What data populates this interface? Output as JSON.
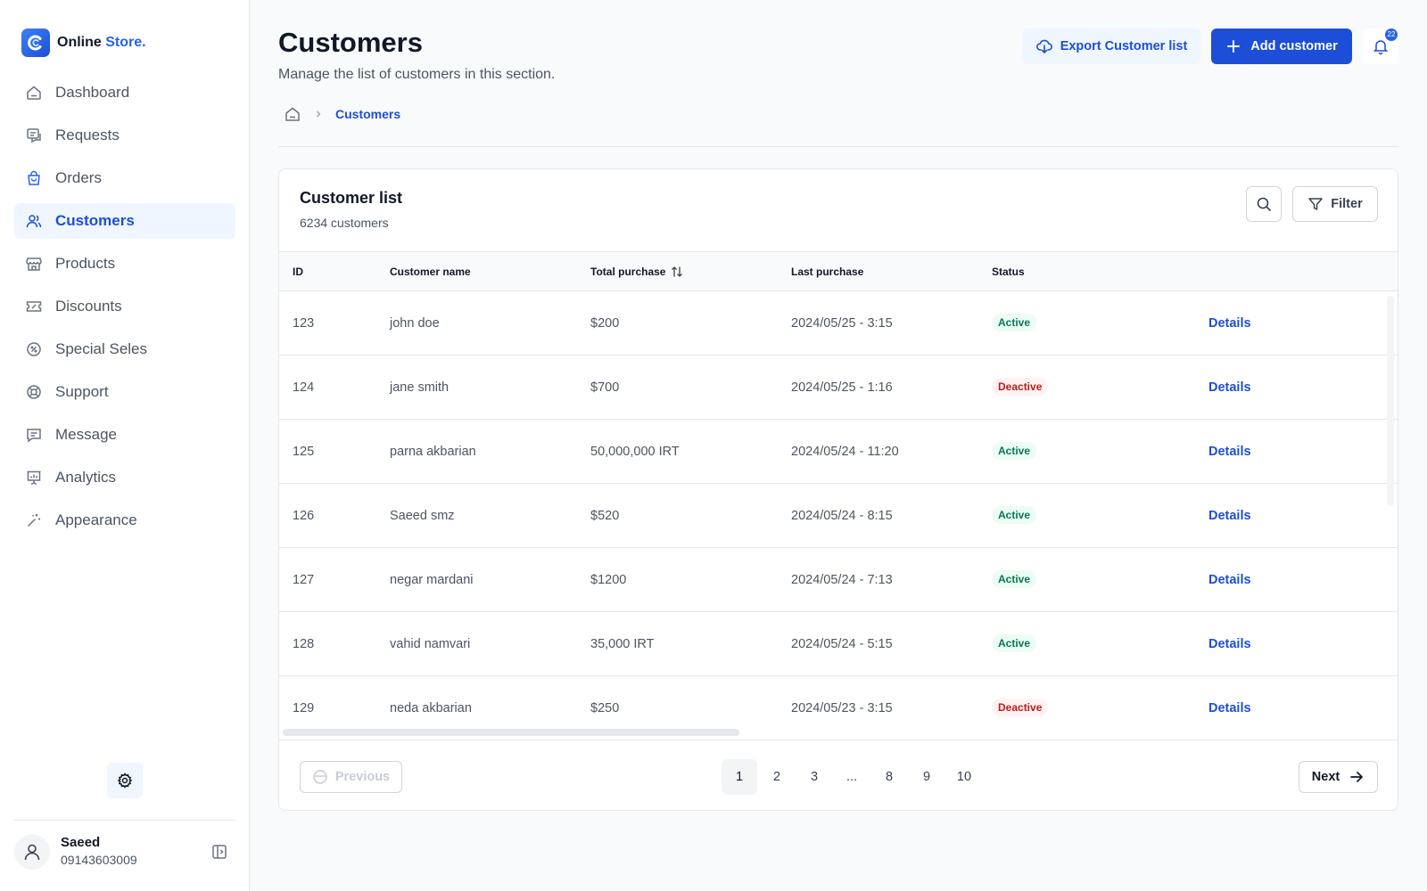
{
  "brand": {
    "name": "Online",
    "accent": "Store."
  },
  "sidebar": {
    "items": [
      {
        "label": "Dashboard",
        "icon": "dashboard-icon"
      },
      {
        "label": "Requests",
        "icon": "requests-icon"
      },
      {
        "label": "Orders",
        "icon": "orders-bag-icon"
      },
      {
        "label": "Customers",
        "icon": "users-icon",
        "active": true
      },
      {
        "label": "Products",
        "icon": "store-icon"
      },
      {
        "label": "Discounts",
        "icon": "ticket-icon"
      },
      {
        "label": "Special Seles",
        "icon": "badge-percent-icon"
      },
      {
        "label": "Support",
        "icon": "lifebuoy-icon"
      },
      {
        "label": "Message",
        "icon": "message-icon"
      },
      {
        "label": "Analytics",
        "icon": "presentation-chart-icon"
      },
      {
        "label": "Appearance",
        "icon": "magic-wand-icon"
      }
    ]
  },
  "user": {
    "name": "Saeed",
    "phone": "09143603009"
  },
  "header": {
    "title": "Customers",
    "subtitle": "Manage the list of customers in this section.",
    "export_label": "Export Customer list",
    "add_label": "Add customer",
    "notification_count": "22"
  },
  "breadcrumb": {
    "current": "Customers"
  },
  "card": {
    "title": "Customer list",
    "count": "6234 customers",
    "filter_label": "Filter"
  },
  "table": {
    "columns": {
      "id": "ID",
      "name": "Customer name",
      "total": "Total purchase",
      "last": "Last purchase",
      "status": "Status"
    },
    "details_label": "Details",
    "rows": [
      {
        "id": "123",
        "name": "john doe",
        "total": "$200",
        "last": "2024/05/25 - 3:15",
        "status": "Active"
      },
      {
        "id": "124",
        "name": "jane smith",
        "total": "$700",
        "last": "2024/05/25 - 1:16",
        "status": "Deactive"
      },
      {
        "id": "125",
        "name": "parna akbarian",
        "total": "50,000,000 IRT",
        "last": "2024/05/24 - 11:20",
        "status": "Active"
      },
      {
        "id": "126",
        "name": "Saeed smz",
        "total": "$520",
        "last": "2024/05/24 - 8:15",
        "status": "Active"
      },
      {
        "id": "127",
        "name": "negar mardani",
        "total": "$1200",
        "last": "2024/05/24 - 7:13",
        "status": "Active"
      },
      {
        "id": "128",
        "name": "vahid namvari",
        "total": "35,000 IRT",
        "last": "2024/05/24 - 5:15",
        "status": "Active"
      },
      {
        "id": "129",
        "name": "neda akbarian",
        "total": "$250",
        "last": "2024/05/23 - 3:15",
        "status": "Deactive"
      }
    ]
  },
  "pagination": {
    "previous_label": "Previous",
    "next_label": "Next",
    "pages": [
      "1",
      "2",
      "3",
      "...",
      "8",
      "9",
      "10"
    ],
    "current": "1"
  },
  "colors": {
    "accent": "#1d4ed8",
    "active_bg": "#ecfdf3",
    "active_text": "#047857",
    "deactive_bg": "#fef2f2",
    "deactive_text": "#b91c1c"
  }
}
